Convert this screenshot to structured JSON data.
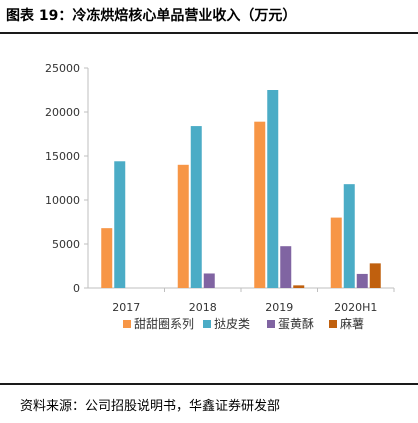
{
  "title": "图表 19：冷冻烘焙核心单品营业收入（万元）",
  "source": "资料来源：公司招股说明书，华鑫证券研发部",
  "chart_data": {
    "type": "bar",
    "title": "",
    "xlabel": "",
    "ylabel": "",
    "categories": [
      "2017",
      "2018",
      "2019",
      "2020H1"
    ],
    "ylim": [
      0,
      25000
    ],
    "yticks": [
      0,
      5000,
      10000,
      15000,
      20000,
      25000
    ],
    "grid": false,
    "legend": "bottom",
    "series": [
      {
        "name": "甜甜圈系列",
        "color": "#F79646",
        "values": [
          6800,
          14000,
          18900,
          8000
        ]
      },
      {
        "name": "挞皮类",
        "color": "#4BACC6",
        "values": [
          14400,
          18400,
          22500,
          11800
        ]
      },
      {
        "name": "蛋黄酥",
        "color": "#8064A2",
        "values": [
          0,
          1650,
          4750,
          1600
        ]
      },
      {
        "name": "麻薯",
        "color": "#C0600E",
        "values": [
          0,
          0,
          300,
          2800
        ]
      }
    ]
  }
}
